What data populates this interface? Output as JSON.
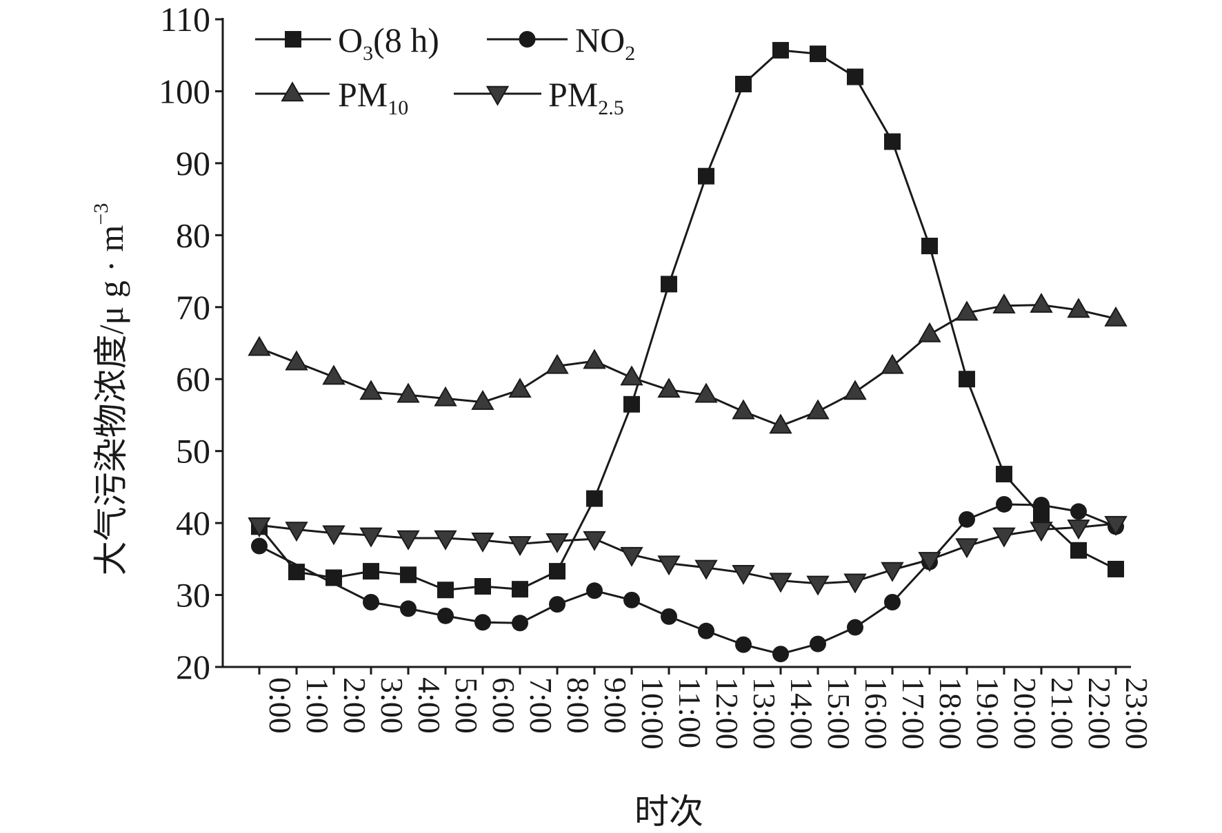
{
  "chart_data": {
    "type": "line",
    "title": "",
    "xlabel": "时次",
    "ylabel": "大气污染物浓度/μg·m⁻³",
    "ylabel_parts": {
      "main": "大气污染物浓度/μ g · m",
      "sup": "−3"
    },
    "categories": [
      "0:00",
      "1:00",
      "2:00",
      "3:00",
      "4:00",
      "5:00",
      "6:00",
      "7:00",
      "8:00",
      "9:00",
      "10:00",
      "11:00",
      "12:00",
      "13:00",
      "14:00",
      "15:00",
      "16:00",
      "17:00",
      "18:00",
      "19:00",
      "20:00",
      "21:00",
      "22:00",
      "23:00"
    ],
    "ylim": [
      20,
      110
    ],
    "yticks": [
      20,
      30,
      40,
      50,
      60,
      70,
      80,
      90,
      100,
      110
    ],
    "grid": false,
    "legend_position": "top-left",
    "series": [
      {
        "name": "O₃(8 h)",
        "legend": {
          "pre": "O",
          "sub": "3",
          "post": "(8 h)"
        },
        "marker": "square",
        "values": [
          39.5,
          33.2,
          32.4,
          33.3,
          32.8,
          30.7,
          31.2,
          30.8,
          33.3,
          43.4,
          56.5,
          73.2,
          88.2,
          101.0,
          105.7,
          105.2,
          102.0,
          93.0,
          78.5,
          60.0,
          46.8,
          41.0,
          36.2,
          33.6
        ]
      },
      {
        "name": "NO₂",
        "legend": {
          "pre": "NO",
          "sub": "2",
          "post": ""
        },
        "marker": "circle",
        "values": [
          36.8,
          null,
          null,
          29.0,
          28.1,
          27.1,
          26.2,
          26.1,
          28.7,
          30.6,
          29.3,
          27.0,
          25.0,
          23.1,
          21.8,
          23.2,
          25.5,
          29.0,
          34.6,
          40.5,
          42.6,
          42.5,
          41.6,
          39.5
        ]
      },
      {
        "name": "PM₁₀",
        "legend": {
          "pre": "PM",
          "sub": "10",
          "post": ""
        },
        "marker": "triangle-up",
        "values": [
          64.3,
          62.3,
          60.3,
          58.2,
          57.8,
          57.3,
          56.8,
          58.5,
          61.8,
          62.5,
          60.2,
          58.5,
          57.8,
          55.5,
          53.5,
          55.5,
          58.2,
          61.8,
          66.2,
          69.2,
          70.2,
          70.3,
          69.6,
          68.4
        ]
      },
      {
        "name": "PM₂.₅",
        "legend": {
          "pre": "PM",
          "sub": "2.5",
          "post": ""
        },
        "marker": "triangle-down",
        "values": [
          39.7,
          39.1,
          38.6,
          38.3,
          37.9,
          37.9,
          37.6,
          37.1,
          37.5,
          37.8,
          35.6,
          34.4,
          33.8,
          33.1,
          32.0,
          31.6,
          31.9,
          33.5,
          34.9,
          36.8,
          38.3,
          39.1,
          39.4,
          39.9
        ]
      }
    ]
  }
}
